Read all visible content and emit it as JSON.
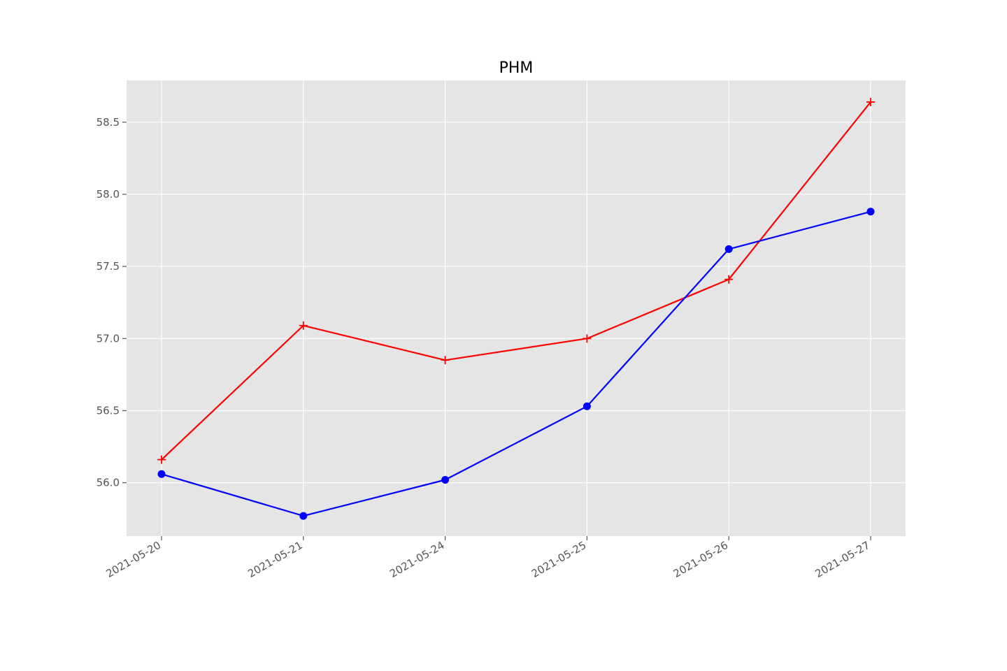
{
  "chart_data": {
    "type": "line",
    "title": "PHM",
    "xlabel": "",
    "ylabel": "",
    "categories": [
      "2021-05-20",
      "2021-05-21",
      "2021-05-24",
      "2021-05-25",
      "2021-05-26",
      "2021-05-27"
    ],
    "ylim": [
      55.63,
      58.79
    ],
    "yticks": [
      56.0,
      56.5,
      57.0,
      57.5,
      58.0,
      58.5
    ],
    "ytick_labels": [
      "56.0",
      "56.5",
      "57.0",
      "57.5",
      "58.0",
      "58.5"
    ],
    "grid": true,
    "legend": "none",
    "series": [
      {
        "values": [
          56.16,
          57.09,
          56.85,
          57.0,
          57.41,
          58.64
        ],
        "color": "#ff0000",
        "marker": "plus"
      },
      {
        "values": [
          56.06,
          55.77,
          56.02,
          56.53,
          57.62,
          57.88
        ],
        "color": "#0000ff",
        "marker": "circle"
      }
    ]
  }
}
